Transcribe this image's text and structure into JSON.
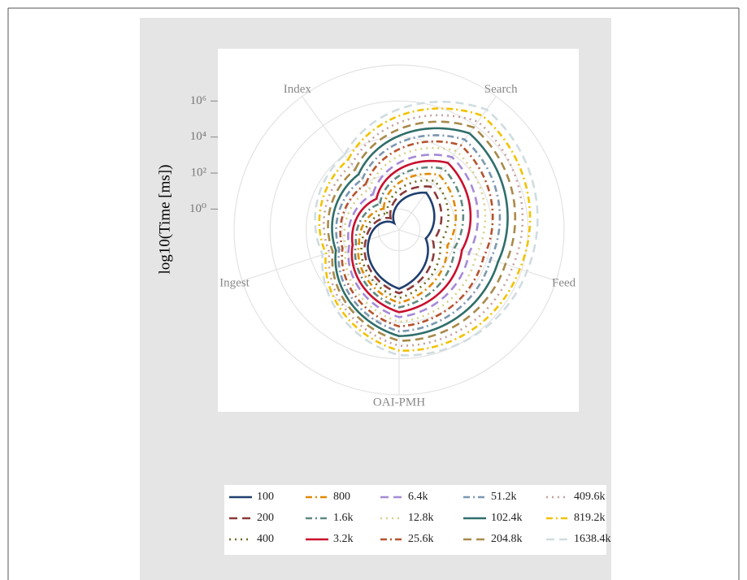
{
  "chart_data": {
    "type": "radar",
    "y_label": "log10(Time [ms])",
    "categories": [
      "Index",
      "Search",
      "Feed",
      "OAI-PMH",
      "Ingest"
    ],
    "ylim": [
      0.07,
      100000000
    ],
    "yticks": [
      {
        "value": 1,
        "label": "10⁰"
      },
      {
        "value": 100,
        "label": "10²"
      },
      {
        "value": 10000,
        "label": "10⁴"
      },
      {
        "value": 1000000,
        "label": "10⁶"
      }
    ],
    "log_scale": true,
    "grid": true,
    "legend": "bottom",
    "series": [
      {
        "name": "100",
        "color": "#1f3f6e",
        "style": "solid",
        "values": [
          0.2,
          25,
          2.5,
          130,
          4
        ]
      },
      {
        "name": "200",
        "color": "#8b3a3a",
        "style": "dashed",
        "values": [
          0.44,
          65,
          6.6,
          230,
          6.2
        ]
      },
      {
        "name": "400",
        "color": "#6b6b1f",
        "style": "dotted",
        "values": [
          0.93,
          160,
          17,
          430,
          9.8
        ]
      },
      {
        "name": "800",
        "color": "#e08a00",
        "style": "dashdot",
        "values": [
          2,
          420,
          46,
          780,
          15
        ]
      },
      {
        "name": "1.6k",
        "color": "#5f8a80",
        "style": "dashdot",
        "values": [
          4.4,
          1100,
          120,
          1400,
          23
        ]
      },
      {
        "name": "3.2k",
        "color": "#c8102e",
        "style": "solid",
        "values": [
          9.5,
          2800,
          320,
          2600,
          36
        ]
      },
      {
        "name": "6.4k",
        "color": "#a58bd6",
        "style": "dashed",
        "values": [
          20,
          6900,
          850,
          4900,
          58
        ]
      },
      {
        "name": "12.8k",
        "color": "#d6d08a",
        "style": "dotted",
        "values": [
          45,
          18000,
          2200,
          8900,
          89
        ]
      },
      {
        "name": "25.6k",
        "color": "#b5532e",
        "style": "dashdot",
        "values": [
          98,
          46000,
          5900,
          16000,
          140
        ]
      },
      {
        "name": "51.2k",
        "color": "#7c98b0",
        "style": "dashdot",
        "values": [
          210,
          110000,
          15000,
          30000,
          220
        ]
      },
      {
        "name": "102.4k",
        "color": "#2f6e6a",
        "style": "solid",
        "values": [
          460,
          300000,
          41000,
          55000,
          340
        ]
      },
      {
        "name": "204.8k",
        "color": "#a88a4a",
        "style": "dashed",
        "values": [
          980,
          760000,
          110000,
          100000,
          520
        ]
      },
      {
        "name": "409.6k",
        "color": "#c4a0a0",
        "style": "dotted",
        "values": [
          2100,
          1900000,
          290000,
          190000,
          810
        ]
      },
      {
        "name": "819.2k",
        "color": "#f2c200",
        "style": "dashdot",
        "values": [
          4600,
          4900000,
          760000,
          350000,
          1300
        ]
      },
      {
        "name": "1638.4k",
        "color": "#d0dde0",
        "style": "dashed",
        "values": [
          10000,
          12600000,
          2000000,
          630000,
          2000
        ]
      }
    ]
  }
}
